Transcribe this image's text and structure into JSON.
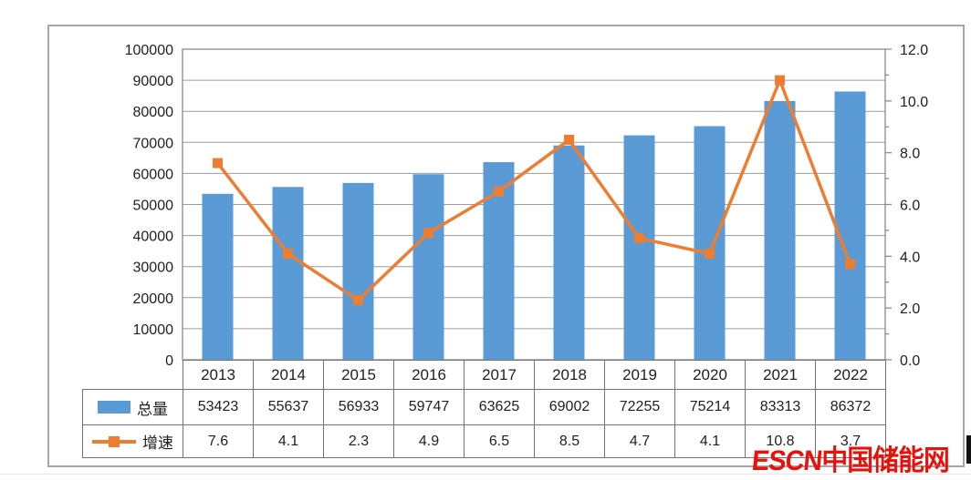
{
  "panel": {
    "border_color": "#a6a6a6",
    "background": "#ffffff"
  },
  "chart_data": {
    "type": "bar+line-combo",
    "categories": [
      "2013",
      "2014",
      "2015",
      "2016",
      "2017",
      "2018",
      "2019",
      "2020",
      "2021",
      "2022"
    ],
    "series": [
      {
        "name": "总量",
        "type": "bar",
        "axis": "left",
        "color": "#5B9BD5",
        "values": [
          53423,
          55637,
          56933,
          59747,
          63625,
          69002,
          72255,
          75214,
          83313,
          86372
        ]
      },
      {
        "name": "增速",
        "type": "line",
        "axis": "right",
        "color": "#ED7D31",
        "values": [
          7.6,
          4.1,
          2.3,
          4.9,
          6.5,
          8.5,
          4.7,
          4.1,
          10.8,
          3.7
        ]
      }
    ],
    "left_axis": {
      "min": 0,
      "max": 100000,
      "step": 10000,
      "labels": [
        "0",
        "10000",
        "20000",
        "30000",
        "40000",
        "50000",
        "60000",
        "70000",
        "80000",
        "90000",
        "100000"
      ]
    },
    "right_axis": {
      "min": 0,
      "max": 12,
      "step": 2,
      "minor_step": 1,
      "labels": [
        "0.0",
        "2.0",
        "4.0",
        "6.0",
        "8.0",
        "10.0",
        "12.0"
      ]
    },
    "grid": true,
    "gridline_color": "#9c9c9c",
    "axis_line_color": "#8c8c8c",
    "legend_position": "table-left",
    "table": {
      "row_labels": [
        "总量",
        "增速"
      ],
      "values_display": [
        [
          "53423",
          "55637",
          "56933",
          "59747",
          "63625",
          "69002",
          "72255",
          "75214",
          "83313",
          "86372"
        ],
        [
          "7.6",
          "4.1",
          "2.3",
          "4.9",
          "6.5",
          "8.5",
          "4.7",
          "4.1",
          "10.8",
          "3.7"
        ]
      ]
    }
  },
  "watermark": {
    "latin": "ESCN",
    "cjk": "中国储能网",
    "color": "#e8110c"
  }
}
